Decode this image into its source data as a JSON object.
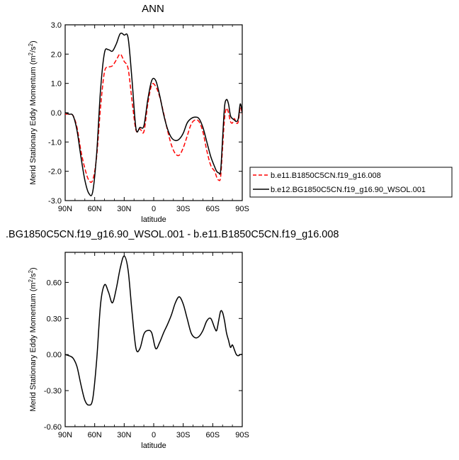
{
  "chart_data": [
    {
      "type": "line",
      "title": "ANN",
      "xlabel": "latitude",
      "ylabel": "Merid Stationary Eddy Momentum (m²/s²)",
      "xlim": [
        90,
        -90
      ],
      "ylim": [
        -3.0,
        3.0
      ],
      "xticks": [
        "90N",
        "60N",
        "30N",
        "0",
        "30S",
        "60S",
        "90S"
      ],
      "yticks": [
        "-3.0",
        "-2.0",
        "-1.0",
        "0.0",
        "1.0",
        "2.0",
        "3.0"
      ],
      "grid": false,
      "legend": "right",
      "series": [
        {
          "name": "b.e11.B1850C5CN.f19_g16.008",
          "color": "#ff0000",
          "style": "dashed",
          "x": [
            90,
            86,
            82,
            78,
            74,
            70,
            66,
            62,
            58,
            54,
            50,
            46,
            42,
            38,
            34,
            30,
            26,
            22,
            18,
            14,
            10,
            6,
            2,
            -2,
            -6,
            -10,
            -14,
            -18,
            -22,
            -26,
            -30,
            -34,
            -38,
            -42,
            -46,
            -50,
            -54,
            -58,
            -62,
            -64,
            -66,
            -68,
            -70,
            -72,
            -74,
            -76,
            -78,
            -80,
            -82,
            -84,
            -86,
            -88,
            -90
          ],
          "y": [
            -0.05,
            -0.05,
            -0.1,
            -0.5,
            -1.3,
            -1.9,
            -2.3,
            -2.3,
            -1.5,
            0.2,
            1.4,
            1.55,
            1.6,
            1.8,
            2.0,
            1.75,
            1.5,
            0.4,
            -0.6,
            -0.55,
            -0.65,
            0.3,
            0.95,
            0.9,
            0.55,
            0.0,
            -0.6,
            -1.1,
            -1.4,
            -1.45,
            -1.2,
            -0.8,
            -0.4,
            -0.25,
            -0.3,
            -0.65,
            -1.3,
            -1.8,
            -2.0,
            -2.2,
            -2.3,
            -2.2,
            -1.2,
            -0.2,
            0.15,
            0.0,
            -0.3,
            -0.35,
            -0.2,
            -0.35,
            -0.3,
            0.2,
            -0.05
          ]
        },
        {
          "name": "b.e12.BG1850C5CN.f19_g16.90_WSOL.001",
          "color": "#000000",
          "style": "solid",
          "x": [
            90,
            86,
            82,
            78,
            74,
            70,
            66,
            62,
            58,
            54,
            50,
            46,
            42,
            38,
            34,
            30,
            26,
            22,
            18,
            14,
            10,
            6,
            2,
            -2,
            -6,
            -10,
            -14,
            -18,
            -22,
            -26,
            -30,
            -34,
            -38,
            -42,
            -46,
            -50,
            -54,
            -58,
            -62,
            -64,
            -66,
            -68,
            -70,
            -72,
            -74,
            -76,
            -78,
            -80,
            -82,
            -84,
            -86,
            -88,
            -90
          ],
          "y": [
            0.0,
            -0.05,
            -0.1,
            -0.6,
            -1.5,
            -2.3,
            -2.75,
            -2.7,
            -1.4,
            0.8,
            2.05,
            2.15,
            2.1,
            2.35,
            2.7,
            2.65,
            2.55,
            1.1,
            -0.55,
            -0.5,
            -0.45,
            0.45,
            1.1,
            1.1,
            0.6,
            -0.05,
            -0.55,
            -0.85,
            -0.95,
            -0.9,
            -0.7,
            -0.35,
            -0.2,
            -0.15,
            -0.2,
            -0.5,
            -1.0,
            -1.5,
            -1.85,
            -2.0,
            -2.05,
            -2.0,
            -0.9,
            0.2,
            0.45,
            0.3,
            -0.1,
            -0.2,
            -0.25,
            -0.3,
            -0.2,
            0.3,
            0.0
          ]
        }
      ]
    },
    {
      "type": "line",
      "title": ".BG1850C5CN.f19_g16.90_WSOL.001 - b.e11.B1850C5CN.f19_g16.008",
      "xlabel": "latitude",
      "ylabel": "Merid Stationary Eddy Momentum (m²/s²)",
      "xlim": [
        90,
        -90
      ],
      "ylim": [
        -0.6,
        0.85
      ],
      "xticks": [
        "90N",
        "60N",
        "30N",
        "0",
        "30S",
        "60S",
        "90S"
      ],
      "yticks": [
        "-0.60",
        "-0.30",
        "0.00",
        "0.30",
        "0.60"
      ],
      "grid": false,
      "series": [
        {
          "color": "#000000",
          "style": "solid",
          "x": [
            90,
            86,
            82,
            78,
            74,
            70,
            66,
            62,
            58,
            54,
            50,
            46,
            42,
            38,
            34,
            30,
            26,
            22,
            18,
            14,
            10,
            6,
            2,
            -2,
            -6,
            -10,
            -14,
            -18,
            -22,
            -26,
            -30,
            -34,
            -38,
            -42,
            -46,
            -50,
            -54,
            -58,
            -62,
            -64,
            -66,
            -68,
            -70,
            -72,
            -74,
            -76,
            -78,
            -80,
            -82,
            -84,
            -86,
            -88,
            -90
          ],
          "y": [
            0.0,
            -0.01,
            -0.03,
            -0.1,
            -0.25,
            -0.38,
            -0.42,
            -0.37,
            -0.05,
            0.42,
            0.58,
            0.52,
            0.43,
            0.55,
            0.72,
            0.82,
            0.7,
            0.35,
            0.05,
            0.05,
            0.17,
            0.2,
            0.18,
            0.05,
            0.1,
            0.18,
            0.25,
            0.33,
            0.43,
            0.48,
            0.42,
            0.3,
            0.18,
            0.14,
            0.15,
            0.2,
            0.28,
            0.3,
            0.22,
            0.2,
            0.28,
            0.36,
            0.35,
            0.28,
            0.18,
            0.12,
            0.06,
            0.08,
            0.04,
            0.0,
            -0.01,
            0.0,
            0.0
          ]
        }
      ]
    }
  ]
}
